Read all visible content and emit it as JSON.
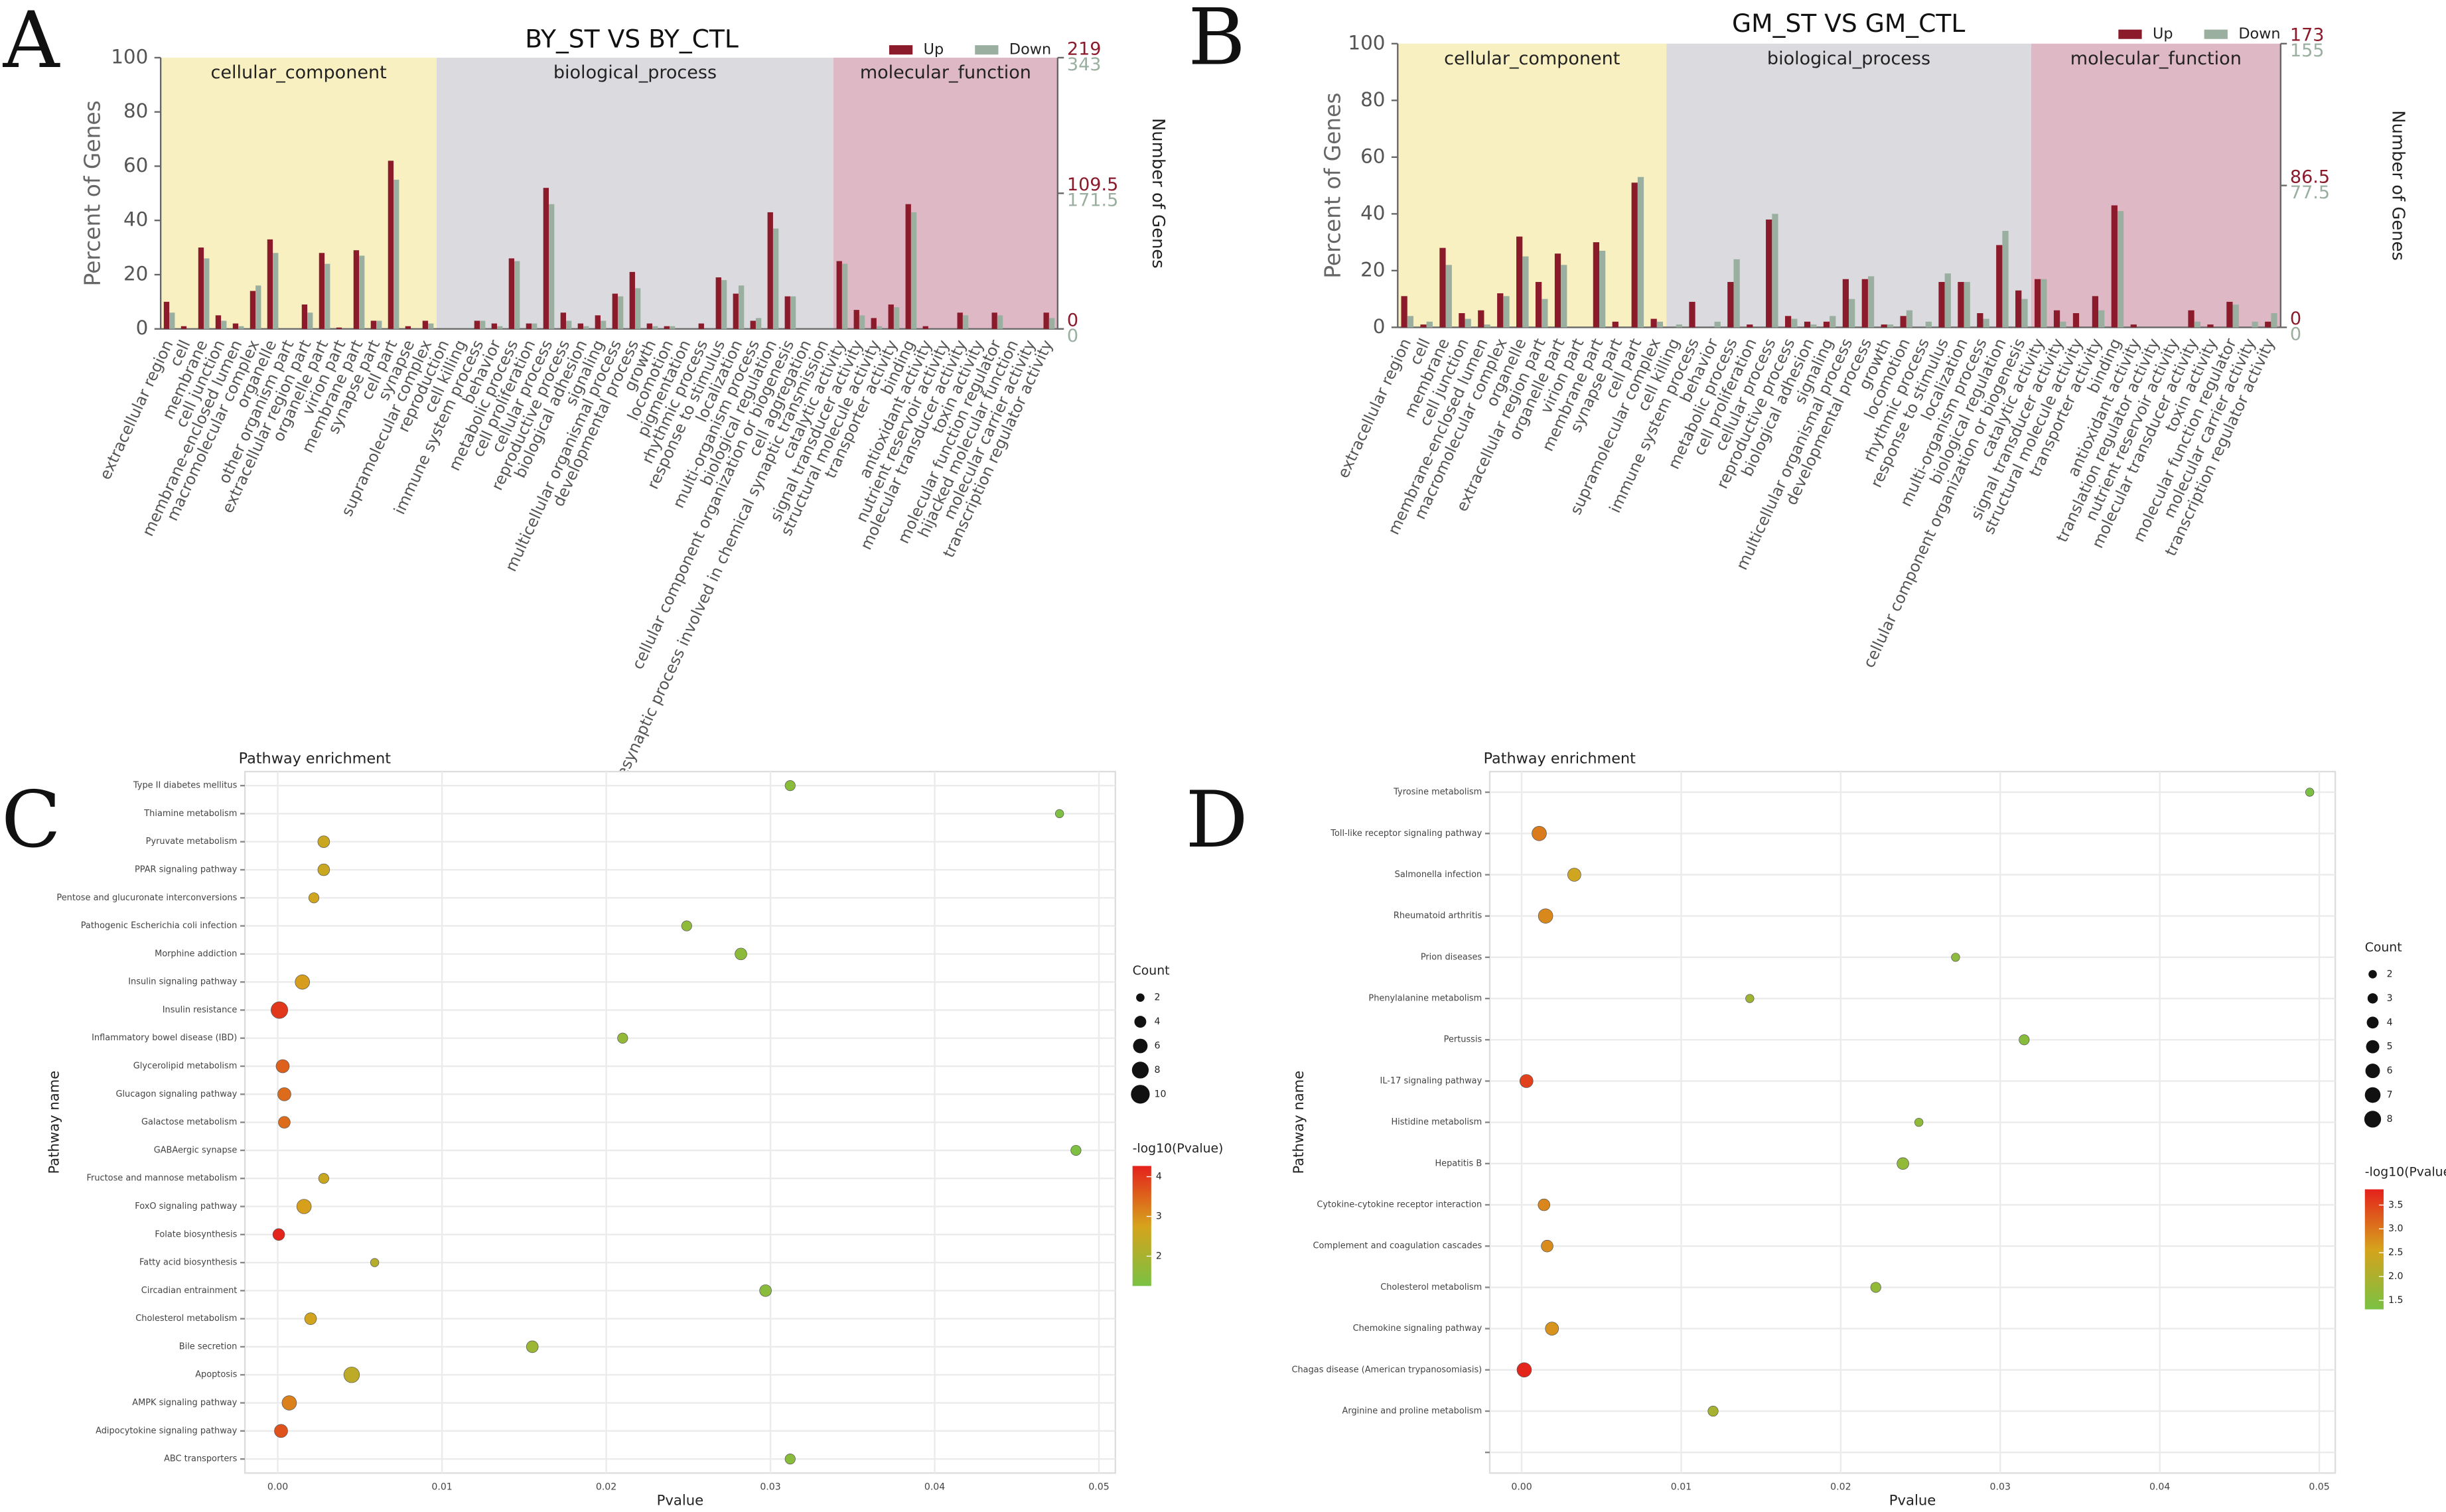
{
  "chart_data": [
    {
      "type": "bar",
      "panel": "A",
      "title": "BY_ST  VS  BY_CTL",
      "ylabel": "Percent of Genes",
      "y2label": "Number of Genes",
      "ylim": [
        0,
        100
      ],
      "yticks": [
        0,
        20,
        40,
        60,
        80,
        100
      ],
      "groups": [
        {
          "name": "cellular_component",
          "first": "extracellular region",
          "last": "supramolecular complex",
          "color": "#f8f0c0"
        },
        {
          "name": "biological_process",
          "first": "reproduction",
          "last": "presynaptic process involved in chemical synaptic transmission",
          "color": "#dbdbdf"
        },
        {
          "name": "molecular_function",
          "first": "catalytic activity",
          "last": "transcription regulator activity",
          "color": "#dfb8c6"
        }
      ],
      "categories": [
        "extracellular region",
        "cell",
        "membrane",
        "cell junction",
        "membrane-enclosed lumen",
        "macromolecular complex",
        "organelle",
        "other organism part",
        "extracellular region part",
        "organelle part",
        "virion part",
        "membrane part",
        "synapse part",
        "cell part",
        "synapse",
        "supramolecular complex",
        "reproduction",
        "cell killing",
        "immune system process",
        "behavior",
        "metabolic process",
        "cell proliferation",
        "cellular process",
        "reproductive process",
        "biological adhesion",
        "signaling",
        "multicellular organismal process",
        "developmental process",
        "growth",
        "locomotion",
        "pigmentation",
        "rhythmic process",
        "response to stimulus",
        "localization",
        "multi-organism process",
        "biological regulation",
        "cellular component organization or biogenesis",
        "cell aggregation",
        "presynaptic process involved in chemical synaptic transmission",
        "catalytic activity",
        "signal transducer activity",
        "structural molecule activity",
        "transporter activity",
        "binding",
        "antioxidant activity",
        "nutrient reservoir activity",
        "molecular transducer activity",
        "toxin activity",
        "molecular function regulator",
        "hijacked molecular function",
        "molecular carrier activity",
        "transcription regulator activity"
      ],
      "series": [
        {
          "name": "Up",
          "color": "#8b1a2b",
          "y2lim": [
            0,
            219
          ],
          "y2ticks": [
            0,
            109.5,
            219
          ],
          "values": [
            10,
            1,
            30,
            5,
            2,
            14,
            33,
            0,
            9,
            28,
            0.5,
            29,
            3,
            62,
            1,
            3,
            0,
            0,
            3,
            2,
            26,
            2,
            52,
            6,
            2,
            5,
            13,
            21,
            2,
            1,
            0,
            2,
            19,
            13,
            3,
            43,
            12,
            0,
            0,
            25,
            7,
            4,
            9,
            46,
            1,
            0,
            6,
            0,
            6,
            0,
            0,
            6
          ]
        },
        {
          "name": "Down",
          "color": "#9aaf9f",
          "y2lim": [
            0,
            343
          ],
          "y2ticks": [
            0,
            171.5,
            343
          ],
          "values": [
            6,
            0,
            26,
            3,
            1,
            16,
            28,
            0,
            6,
            24,
            0,
            27,
            3,
            55,
            0,
            2,
            0,
            0,
            3,
            1,
            25,
            2,
            46,
            3,
            1,
            3,
            12,
            15,
            1,
            1,
            0,
            0,
            18,
            16,
            4,
            37,
            12,
            0,
            0,
            24,
            5,
            1,
            8,
            43,
            0,
            0,
            5,
            0,
            5,
            0,
            0,
            4
          ]
        }
      ]
    },
    {
      "type": "bar",
      "panel": "B",
      "title": "GM_ST  VS  GM_CTL",
      "ylabel": "Percent of Genes",
      "y2label": "Number of Genes",
      "ylim": [
        0,
        100
      ],
      "yticks": [
        0,
        20,
        40,
        60,
        80,
        100
      ],
      "groups": [
        {
          "name": "cellular_component",
          "first": "extracellular region",
          "last": "supramolecular complex",
          "color": "#f8f0c0"
        },
        {
          "name": "biological_process",
          "first": "cell killing",
          "last": "cellular component organization or biogenesis",
          "color": "#dbdbdf"
        },
        {
          "name": "molecular_function",
          "first": "catalytic activity",
          "last": "transcription regulator activity",
          "color": "#dfb8c6"
        }
      ],
      "categories": [
        "extracellular region",
        "cell",
        "membrane",
        "cell junction",
        "membrane-enclosed lumen",
        "macromolecular complex",
        "organelle",
        "extracellular region part",
        "organelle part",
        "virion part",
        "membrane part",
        "synapse part",
        "cell part",
        "supramolecular complex",
        "cell killing",
        "immune system process",
        "behavior",
        "metabolic process",
        "cell proliferation",
        "cellular process",
        "reproductive process",
        "biological adhesion",
        "signaling",
        "multicellular organismal process",
        "developmental process",
        "growth",
        "locomotion",
        "rhythmic process",
        "response to stimulus",
        "localization",
        "multi-organism process",
        "biological regulation",
        "cellular component organization or biogenesis",
        "catalytic activity",
        "signal transducer activity",
        "structural molecule activity",
        "transporter activity",
        "binding",
        "antioxidant activity",
        "translation regulator activity",
        "nutrient reservoir activity",
        "molecular transducer activity",
        "toxin activity",
        "molecular function regulator",
        "molecular carrier activity",
        "transcription regulator activity"
      ],
      "series": [
        {
          "name": "Up",
          "color": "#8b1a2b",
          "y2lim": [
            0,
            173
          ],
          "y2ticks": [
            0,
            86.5,
            173
          ],
          "values": [
            11,
            1,
            28,
            5,
            6,
            12,
            32,
            16,
            26,
            0,
            30,
            2,
            51,
            3,
            0,
            9,
            0,
            16,
            1,
            38,
            4,
            2,
            2,
            17,
            17,
            1,
            4,
            0,
            16,
            16,
            5,
            29,
            13,
            17,
            6,
            5,
            11,
            43,
            1,
            0,
            0,
            6,
            1,
            9,
            0,
            2
          ]
        },
        {
          "name": "Down",
          "color": "#9aaf9f",
          "y2lim": [
            0,
            155
          ],
          "y2ticks": [
            0,
            77.5,
            155
          ],
          "values": [
            4,
            2,
            22,
            3,
            1,
            11,
            25,
            10,
            22,
            0,
            27,
            0,
            53,
            2,
            1,
            0,
            2,
            24,
            0,
            40,
            3,
            1,
            4,
            10,
            18,
            1,
            6,
            2,
            19,
            16,
            3,
            34,
            10,
            17,
            2,
            0,
            6,
            41,
            0,
            0,
            0,
            2,
            0,
            8,
            2,
            5
          ]
        }
      ]
    },
    {
      "type": "scatter",
      "panel": "C",
      "title": "Pathway enrichment",
      "xlabel": "Pvalue",
      "ylabel": "Pathway name",
      "xlim": [
        -0.002,
        0.051
      ],
      "xticks": [
        {
          "value": 0,
          "label": "0.00"
        },
        0.01,
        0.02,
        0.03,
        0.04,
        0.05
      ],
      "categories": [
        "Type II diabetes mellitus",
        "Thiamine metabolism",
        "Pyruvate metabolism",
        "PPAR signaling pathway",
        "Pentose and glucuronate interconversions",
        "Pathogenic Escherichia coli infection",
        "Morphine addiction",
        "Insulin signaling pathway",
        "Insulin resistance",
        "Inflammatory bowel disease (IBD)",
        "Glycerolipid metabolism",
        "Glucagon signaling pathway",
        "Galactose metabolism",
        "GABAergic synapse",
        "Fructose and mannose metabolism",
        "FoxO signaling pathway",
        "Folate biosynthesis",
        "Fatty acid biosynthesis",
        "Circadian entrainment",
        "Cholesterol metabolism",
        "Bile secretion",
        "Apoptosis",
        "AMPK signaling pathway",
        "Adipocytokine signaling pathway",
        "ABC transporters"
      ],
      "x": [
        0.0312,
        0.0476,
        0.0028,
        0.0028,
        0.0022,
        0.0249,
        0.0282,
        0.0015,
        0.0001,
        0.021,
        0.0003,
        0.0004,
        0.0004,
        0.0486,
        0.0028,
        0.0016,
        6e-05,
        0.0059,
        0.0297,
        0.002,
        0.0155,
        0.0045,
        0.0007,
        0.0002,
        0.0312
      ],
      "counts": [
        3,
        2,
        4,
        4,
        3,
        3,
        4,
        6,
        8,
        3,
        5,
        5,
        4,
        3,
        3,
        6,
        4,
        2,
        4,
        4,
        4,
        7,
        6,
        5,
        3
      ],
      "size_title": "Count",
      "size_legend": [
        2,
        4,
        6,
        8,
        10
      ],
      "color_title": "-log10(Pvalue)",
      "colormap": [
        "#7ac143",
        "#d6a31c",
        "#e4211c"
      ],
      "colorlim": [
        1.25,
        4.27
      ],
      "colorticks": [
        2,
        3,
        4
      ]
    },
    {
      "type": "scatter",
      "panel": "D",
      "title": "Pathway enrichment",
      "xlabel": "Pvalue",
      "ylabel": "Pathway name",
      "xlim": [
        -0.002,
        0.051
      ],
      "xticks": [
        {
          "value": 0,
          "label": "0.00"
        },
        0.01,
        0.02,
        0.03,
        0.04,
        0.05
      ],
      "categories": [
        "Tyrosine metabolism",
        "Toll-like receptor signaling pathway",
        "Salmonella infection",
        "Rheumatoid arthritis",
        "Prion diseases",
        "Phenylalanine metabolism",
        "Pertussis",
        "IL-17 signaling pathway",
        "Histidine metabolism",
        "Hepatitis B",
        "Cytokine-cytokine receptor interaction",
        "Complement and coagulation cascades",
        "Cholesterol metabolism",
        "Chemokine signaling pathway",
        "Chagas disease (American trypanosomiasis)",
        "Arginine and proline metabolism",
        null
      ],
      "x": [
        0.0494,
        0.0011,
        0.0033,
        0.0015,
        0.0272,
        0.0143,
        0.0315,
        0.0003,
        0.0249,
        0.0239,
        0.0014,
        0.0016,
        0.0222,
        0.0019,
        0.00016,
        0.012,
        null
      ],
      "counts": [
        2,
        6,
        5,
        6,
        2,
        2,
        3,
        5,
        2,
        4,
        4,
        4,
        3,
        5,
        6,
        3,
        null
      ],
      "size_title": "Count",
      "size_legend": [
        2,
        3,
        4,
        5,
        6,
        7,
        8
      ],
      "color_title": "-log10(Pvalue)",
      "colormap": [
        "#7ac143",
        "#d6a31c",
        "#e4211c"
      ],
      "colorlim": [
        1.31,
        3.83
      ],
      "colorticks": [
        1.5,
        {
          "value": 2,
          "label": "2.0"
        },
        2.5,
        {
          "value": 3,
          "label": "3.0"
        },
        3.5
      ]
    }
  ]
}
